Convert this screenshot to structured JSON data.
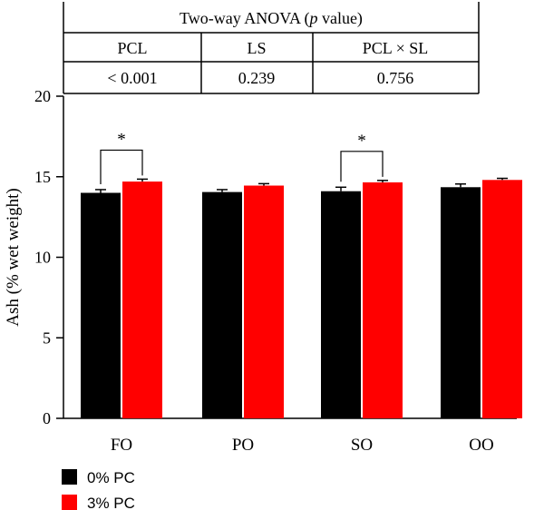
{
  "anova_table": {
    "title_before": "Two-way ANOVA (",
    "title_italic": "p",
    "title_after": " value)",
    "columns": [
      "PCL",
      "LS",
      "PCL × SL"
    ],
    "values": [
      "< 0.001",
      "0.239",
      "0.756"
    ]
  },
  "chart_data": {
    "type": "bar",
    "categories": [
      "FO",
      "PO",
      "SO",
      "OO"
    ],
    "series": [
      {
        "name": "0% PC",
        "color": "#000000",
        "values": [
          14.0,
          14.05,
          14.1,
          14.35
        ],
        "errors": [
          0.2,
          0.15,
          0.25,
          0.2
        ]
      },
      {
        "name": "3% PC",
        "color": "#ff0000",
        "values": [
          14.7,
          14.45,
          14.65,
          14.8
        ],
        "errors": [
          0.15,
          0.12,
          0.12,
          0.1
        ]
      }
    ],
    "ylabel": "Ash (% wet weight)",
    "ylim": [
      0,
      20
    ],
    "yticks": [
      0,
      5,
      10,
      15,
      20
    ],
    "grid": false,
    "legend_position": "bottom-left",
    "significance": [
      {
        "category": "FO",
        "label": "*"
      },
      {
        "category": "SO",
        "label": "*"
      }
    ]
  }
}
